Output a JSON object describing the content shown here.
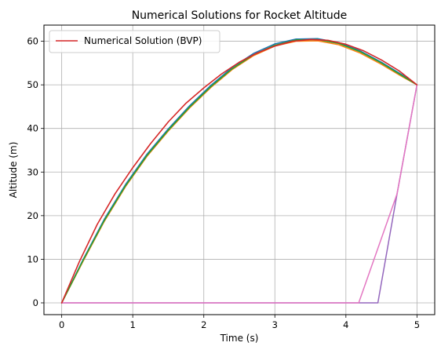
{
  "chart_data": {
    "type": "line",
    "title": "Numerical Solutions for Rocket Altitude",
    "xlabel": "Time (s)",
    "ylabel": "Altitude (m)",
    "xlim": [
      -0.25,
      5.25
    ],
    "ylim": [
      -2.7,
      63.7
    ],
    "xticks": [
      0,
      1,
      2,
      3,
      4,
      5
    ],
    "yticks": [
      0,
      10,
      20,
      30,
      40,
      50,
      60
    ],
    "grid": true,
    "legend": {
      "placement": "upper-left",
      "entries": [
        {
          "label": "Numerical Solution (BVP)",
          "color": "#d62728"
        }
      ]
    },
    "series": [
      {
        "label": "Numerical Solution (BVP)",
        "color": "#d62728",
        "width": 1.6,
        "x": [
          0,
          0.25,
          0.5,
          0.75,
          1.0,
          1.25,
          1.5,
          1.75,
          2.0,
          2.25,
          2.5,
          2.75,
          3.0,
          3.25,
          3.5,
          3.75,
          4.0,
          4.25,
          4.5,
          4.75,
          5.0
        ],
        "y": [
          0,
          9.5,
          18.0,
          25.0,
          31.0,
          36.5,
          41.5,
          45.8,
          49.3,
          52.5,
          55.2,
          57.3,
          58.9,
          60.0,
          60.4,
          60.2,
          59.3,
          57.8,
          55.7,
          53.2,
          50.0
        ]
      },
      {
        "color": "#1f77b4",
        "width": 1.5,
        "x": [
          0,
          0.3,
          0.6,
          0.9,
          1.2,
          1.5,
          1.8,
          2.1,
          2.4,
          2.7,
          3.0,
          3.3,
          3.6,
          3.9,
          4.2,
          4.5,
          4.8,
          5.0
        ],
        "y": [
          0,
          9.9,
          19.2,
          27.2,
          34.1,
          39.9,
          45.2,
          49.9,
          54.0,
          57.2,
          59.4,
          60.5,
          60.6,
          59.7,
          57.8,
          55.2,
          52.2,
          50.0
        ]
      },
      {
        "color": "#ff7f0e",
        "width": 1.5,
        "x": [
          0,
          0.3,
          0.6,
          0.9,
          1.2,
          1.5,
          1.8,
          2.1,
          2.4,
          2.7,
          3.0,
          3.3,
          3.6,
          3.9,
          4.2,
          4.5,
          4.8,
          5.0
        ],
        "y": [
          0,
          9.5,
          18.7,
          26.7,
          33.6,
          39.4,
          44.7,
          49.4,
          53.5,
          56.7,
          58.9,
          60.0,
          60.1,
          59.2,
          57.3,
          54.7,
          51.8,
          50.0
        ]
      },
      {
        "color": "#2ca02c",
        "width": 1.5,
        "x": [
          0,
          0.3,
          0.6,
          0.9,
          1.2,
          1.5,
          1.8,
          2.1,
          2.4,
          2.7,
          3.0,
          3.3,
          3.6,
          3.9,
          4.2,
          4.5,
          4.8,
          5.0
        ],
        "y": [
          0,
          9.7,
          18.9,
          26.9,
          33.8,
          39.6,
          44.9,
          49.6,
          53.7,
          56.9,
          59.1,
          60.3,
          60.4,
          59.5,
          57.6,
          55.0,
          52.0,
          50.0
        ]
      },
      {
        "color": "#9467bd",
        "width": 1.5,
        "x": [
          0,
          4.45,
          4.72,
          5.0
        ],
        "y": [
          0,
          0,
          25.0,
          50.0
        ]
      },
      {
        "color": "#e377c2",
        "width": 1.5,
        "x": [
          0,
          4.18,
          4.72,
          5.0
        ],
        "y": [
          0,
          0,
          25.0,
          50.0
        ]
      }
    ]
  }
}
